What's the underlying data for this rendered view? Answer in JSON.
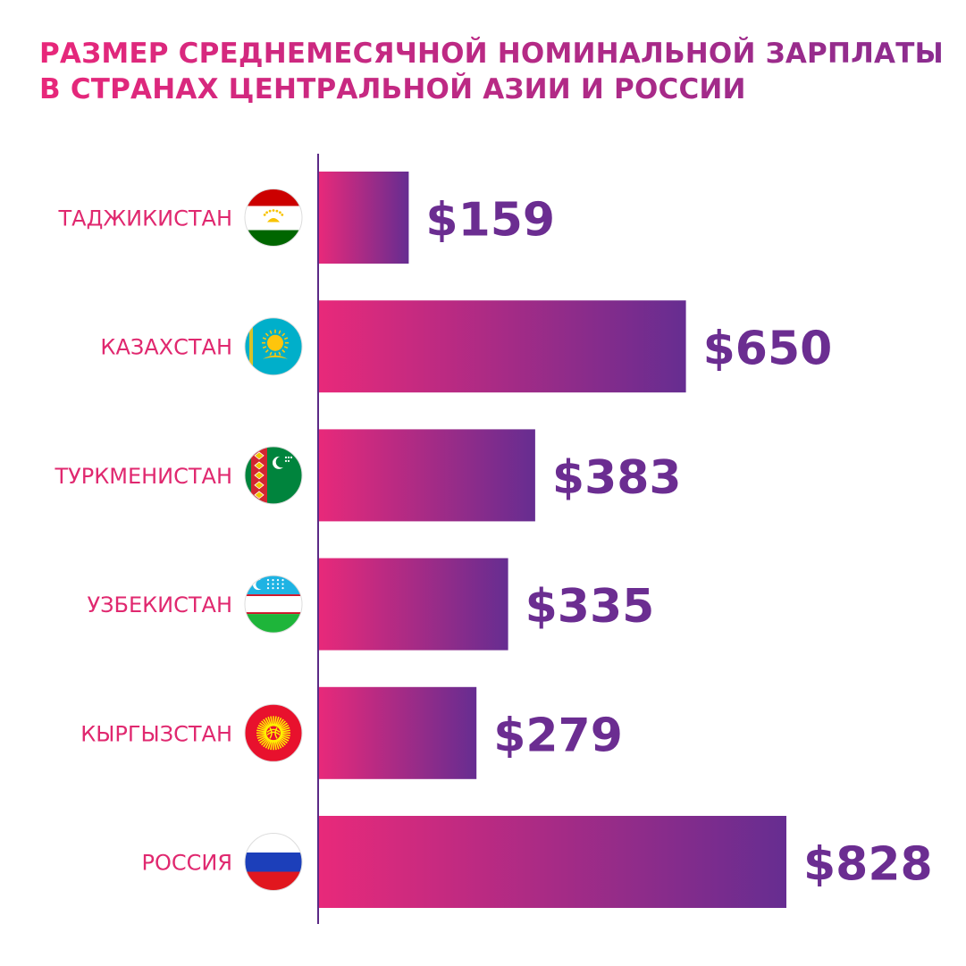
{
  "title": {
    "line1": "РАЗМЕР СРЕДНЕМЕСЯЧНОЙ НОМИНАЛЬНОЙ ЗАРПЛАТЫ",
    "line2": "В СТРАНАХ ЦЕНТРАЛЬНОЙ АЗИИ И РОССИИ"
  },
  "colors": {
    "label": "#e0286f",
    "value": "#6b2d91",
    "bar_start": "#e8297a",
    "bar_end": "#662d91",
    "axis": "#5b2a86"
  },
  "chart_data": {
    "type": "bar",
    "orientation": "horizontal",
    "categories": [
      "ТАДЖИКИСТАН",
      "КАЗАХСТАН",
      "ТУРКМЕНИСТАН",
      "УЗБЕКИСТАН",
      "КЫРГЫЗСТАН",
      "РОССИЯ"
    ],
    "values": [
      159,
      650,
      383,
      335,
      279,
      828
    ],
    "value_labels": [
      "$159",
      "$650",
      "$383",
      "$335",
      "$279",
      "$828"
    ],
    "flags": [
      "tajikistan-flag-icon",
      "kazakhstan-flag-icon",
      "turkmenistan-flag-icon",
      "uzbekistan-flag-icon",
      "kyrgyzstan-flag-icon",
      "russia-flag-icon"
    ],
    "xlim": [
      0,
      828
    ],
    "grid": false,
    "legend": "none"
  }
}
